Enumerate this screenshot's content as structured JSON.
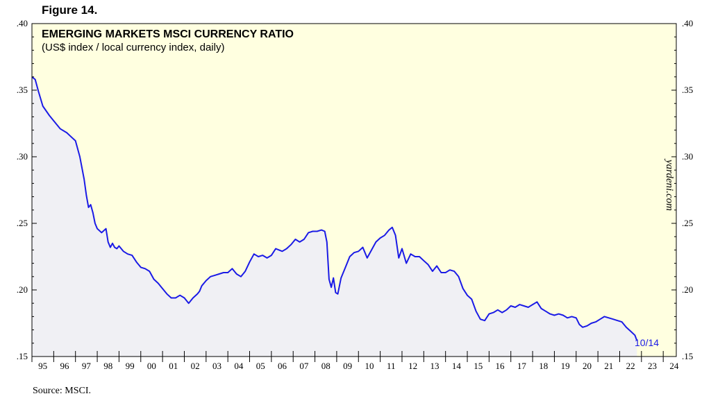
{
  "figure_label": "Figure 14.",
  "source_note": "Source: MSCI.",
  "watermark": "yardeni.com",
  "colors": {
    "plot_bg": "#ffffe0",
    "area_fill": "#f0f0f4",
    "line": "#1a1ae6"
  },
  "chart_data": {
    "type": "line",
    "title": "EMERGING MARKETS MSCI CURRENCY RATIO",
    "subtitle": "(US$ index / local currency index, daily)",
    "ylim": [
      0.15,
      0.4
    ],
    "yticks": [
      0.15,
      0.2,
      0.25,
      0.3,
      0.35,
      0.4
    ],
    "ytick_labels": [
      ".15",
      ".20",
      ".25",
      ".30",
      ".35",
      ".40"
    ],
    "xlim": [
      1995,
      2024.6
    ],
    "xtick_labels": [
      "95",
      "96",
      "97",
      "98",
      "99",
      "00",
      "01",
      "02",
      "03",
      "04",
      "05",
      "06",
      "07",
      "08",
      "09",
      "10",
      "11",
      "12",
      "13",
      "14",
      "15",
      "16",
      "17",
      "18",
      "19",
      "20",
      "21",
      "22",
      "23",
      "24"
    ],
    "last_label": "10/14",
    "series": [
      {
        "name": "EM MSCI currency ratio",
        "x": [
          1995.0,
          1995.15,
          1995.3,
          1995.5,
          1995.8,
          1996.0,
          1996.3,
          1996.6,
          1996.8,
          1997.0,
          1997.2,
          1997.4,
          1997.5,
          1997.6,
          1997.7,
          1997.8,
          1997.9,
          1998.0,
          1998.2,
          1998.4,
          1998.5,
          1998.6,
          1998.7,
          1998.8,
          1998.9,
          1999.0,
          1999.2,
          1999.4,
          1999.6,
          1999.8,
          2000.0,
          2000.2,
          2000.4,
          2000.6,
          2000.8,
          2001.0,
          2001.2,
          2001.4,
          2001.6,
          2001.8,
          2002.0,
          2002.2,
          2002.4,
          2002.6,
          2002.7,
          2002.8,
          2003.0,
          2003.2,
          2003.4,
          2003.6,
          2003.8,
          2004.0,
          2004.2,
          2004.4,
          2004.6,
          2004.8,
          2005.0,
          2005.2,
          2005.4,
          2005.6,
          2005.8,
          2006.0,
          2006.2,
          2006.35,
          2006.5,
          2006.7,
          2006.9,
          2007.1,
          2007.3,
          2007.5,
          2007.7,
          2007.9,
          2008.1,
          2008.3,
          2008.45,
          2008.55,
          2008.65,
          2008.75,
          2008.85,
          2008.95,
          2009.05,
          2009.2,
          2009.4,
          2009.6,
          2009.8,
          2010.0,
          2010.2,
          2010.4,
          2010.6,
          2010.8,
          2011.0,
          2011.2,
          2011.4,
          2011.55,
          2011.7,
          2011.85,
          2012.0,
          2012.2,
          2012.4,
          2012.6,
          2012.8,
          2013.0,
          2013.2,
          2013.4,
          2013.6,
          2013.8,
          2014.0,
          2014.2,
          2014.4,
          2014.6,
          2014.8,
          2015.0,
          2015.2,
          2015.4,
          2015.6,
          2015.8,
          2016.0,
          2016.2,
          2016.4,
          2016.6,
          2016.8,
          2017.0,
          2017.2,
          2017.4,
          2017.6,
          2017.8,
          2018.0,
          2018.2,
          2018.4,
          2018.6,
          2018.8,
          2019.0,
          2019.2,
          2019.4,
          2019.6,
          2019.8,
          2020.0,
          2020.15,
          2020.3,
          2020.5,
          2020.7,
          2020.9,
          2021.1,
          2021.3,
          2021.5,
          2021.7,
          2021.9,
          2022.1,
          2022.3,
          2022.5,
          2022.7,
          2022.79
        ],
        "y": [
          0.36,
          0.358,
          0.349,
          0.338,
          0.331,
          0.327,
          0.321,
          0.318,
          0.315,
          0.312,
          0.3,
          0.283,
          0.271,
          0.262,
          0.264,
          0.258,
          0.25,
          0.246,
          0.243,
          0.246,
          0.236,
          0.232,
          0.235,
          0.232,
          0.231,
          0.233,
          0.229,
          0.227,
          0.226,
          0.221,
          0.217,
          0.216,
          0.214,
          0.208,
          0.205,
          0.201,
          0.197,
          0.194,
          0.194,
          0.196,
          0.194,
          0.19,
          0.194,
          0.197,
          0.199,
          0.203,
          0.207,
          0.21,
          0.211,
          0.212,
          0.213,
          0.213,
          0.216,
          0.212,
          0.21,
          0.214,
          0.221,
          0.227,
          0.225,
          0.226,
          0.224,
          0.226,
          0.231,
          0.23,
          0.229,
          0.231,
          0.234,
          0.238,
          0.236,
          0.238,
          0.243,
          0.244,
          0.244,
          0.245,
          0.244,
          0.236,
          0.208,
          0.202,
          0.209,
          0.198,
          0.197,
          0.209,
          0.217,
          0.225,
          0.228,
          0.229,
          0.232,
          0.224,
          0.23,
          0.236,
          0.239,
          0.241,
          0.245,
          0.247,
          0.241,
          0.224,
          0.231,
          0.22,
          0.227,
          0.225,
          0.225,
          0.222,
          0.219,
          0.214,
          0.218,
          0.213,
          0.213,
          0.215,
          0.214,
          0.21,
          0.201,
          0.196,
          0.193,
          0.184,
          0.178,
          0.177,
          0.182,
          0.183,
          0.185,
          0.183,
          0.185,
          0.188,
          0.187,
          0.189,
          0.188,
          0.187,
          0.189,
          0.191,
          0.186,
          0.184,
          0.182,
          0.181,
          0.182,
          0.181,
          0.179,
          0.18,
          0.179,
          0.174,
          0.172,
          0.173,
          0.175,
          0.176,
          0.178,
          0.18,
          0.179,
          0.178,
          0.177,
          0.176,
          0.172,
          0.169,
          0.166,
          0.162
        ]
      }
    ]
  }
}
